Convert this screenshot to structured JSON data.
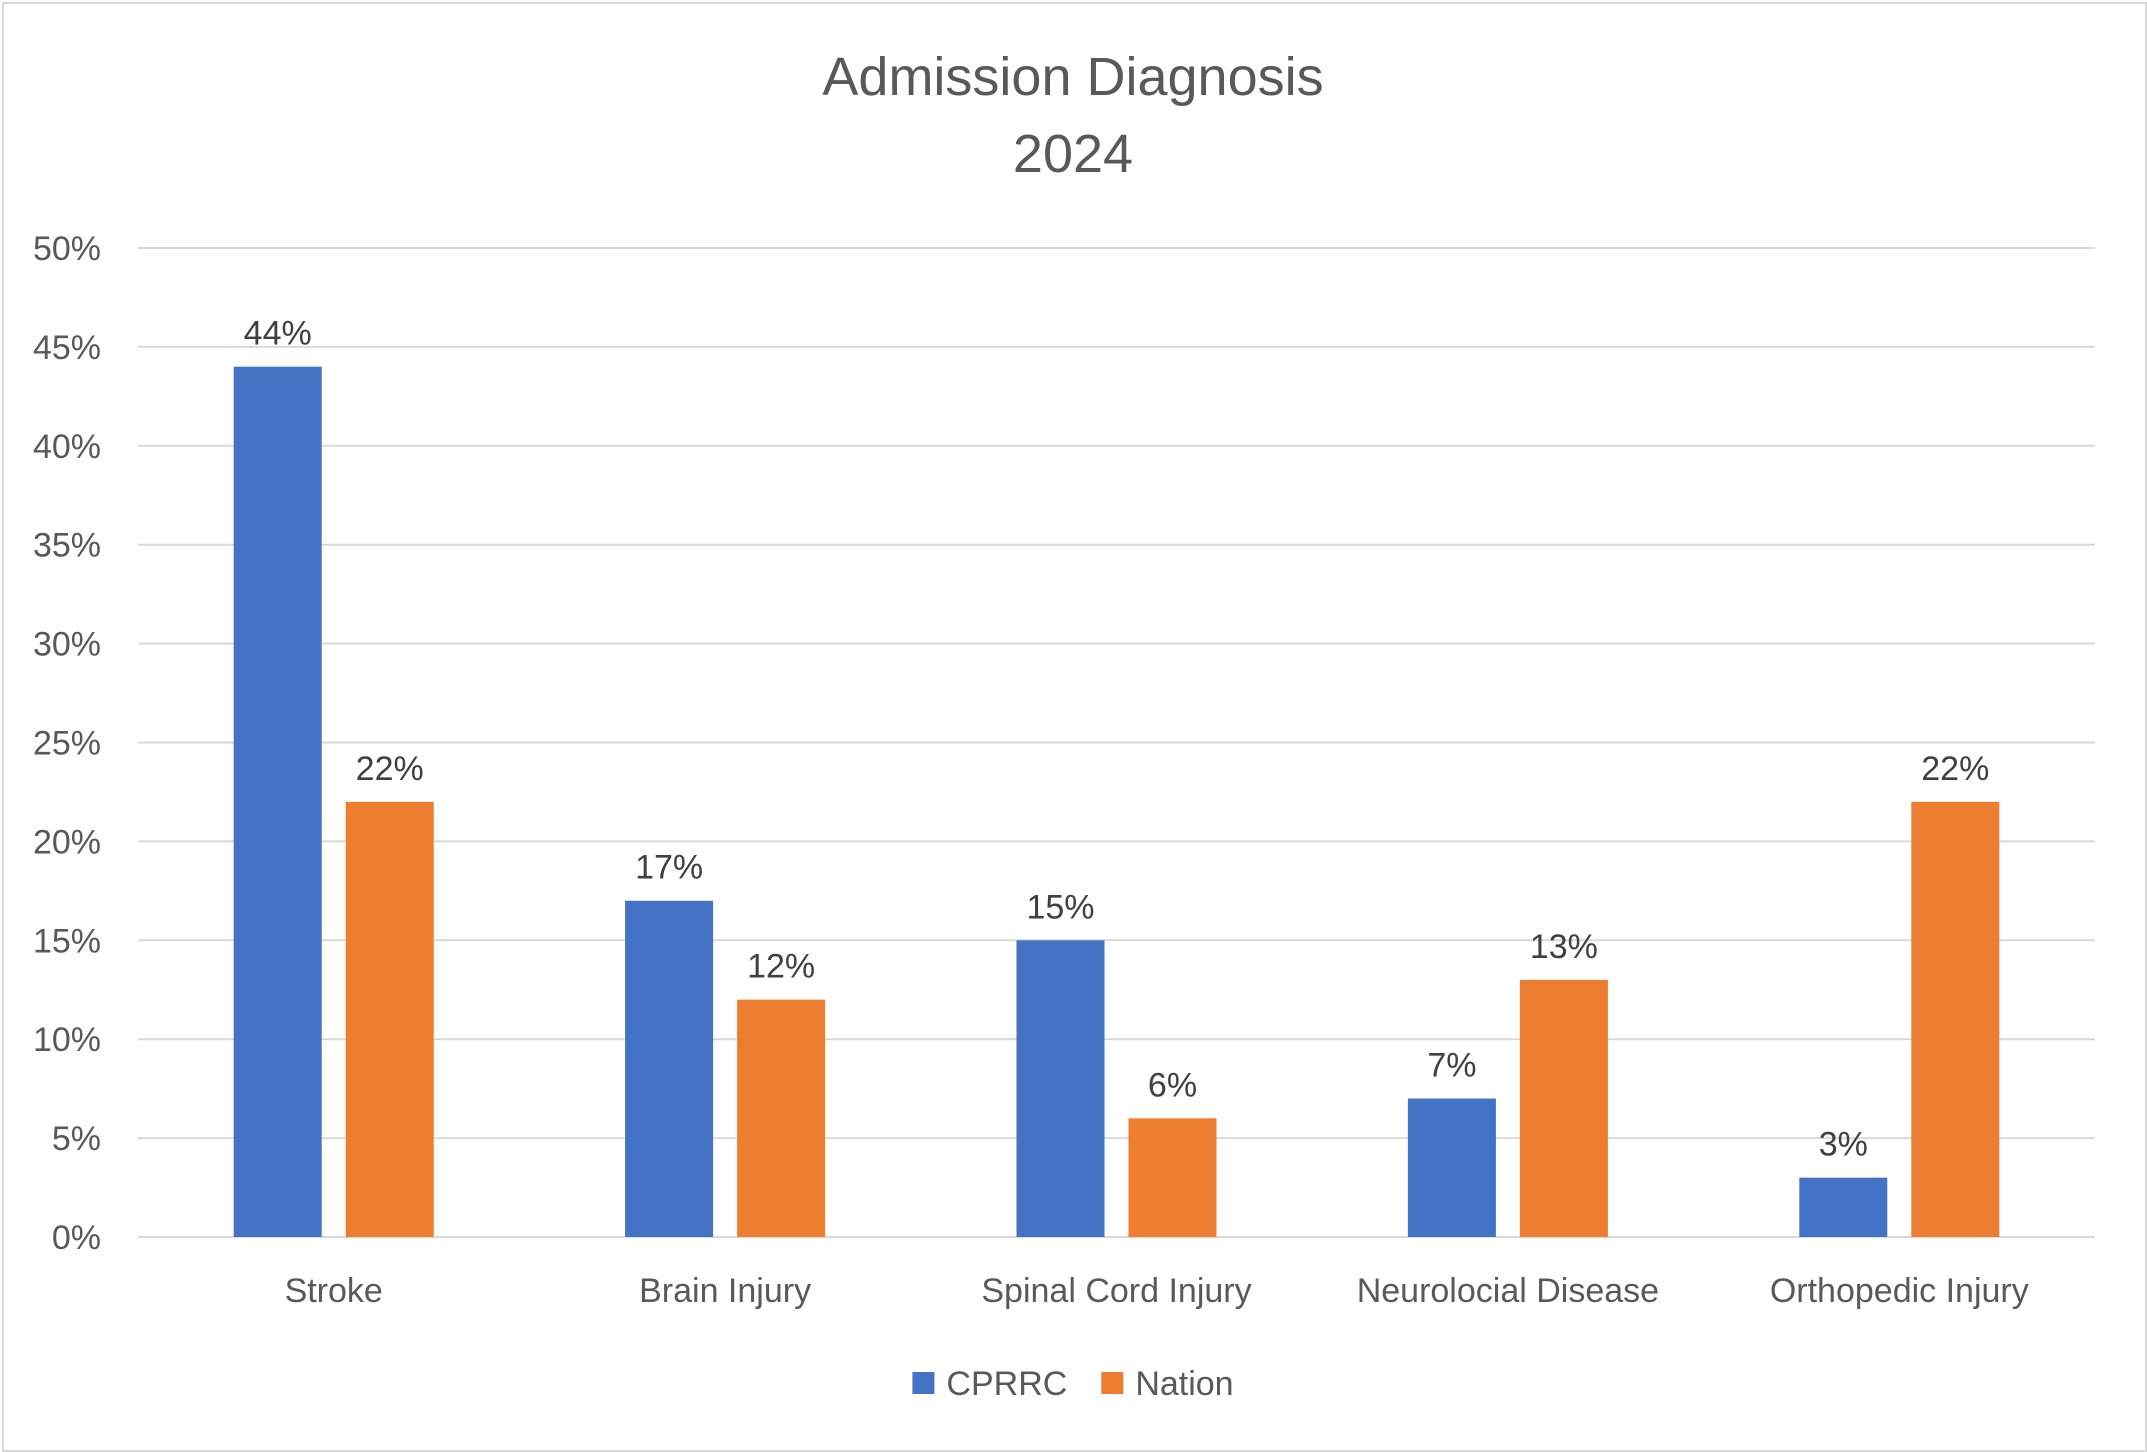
{
  "chart_data": {
    "type": "bar",
    "title": [
      "Admission Diagnosis",
      "2024"
    ],
    "categories": [
      "Stroke",
      "Brain Injury",
      "Spinal Cord Injury",
      "Neurolocial Disease",
      "Orthopedic Injury"
    ],
    "series": [
      {
        "name": "CPRRC",
        "color": "#4472c4",
        "values": [
          44,
          17,
          15,
          7,
          3
        ],
        "labels": [
          "44%",
          "17%",
          "15%",
          "7%",
          "3%"
        ]
      },
      {
        "name": "Nation",
        "color": "#ed7d31",
        "values": [
          22,
          12,
          6,
          13,
          22
        ],
        "labels": [
          "22%",
          "12%",
          "6%",
          "13%",
          "22%"
        ]
      }
    ],
    "yticks": [
      "0%",
      "5%",
      "10%",
      "15%",
      "20%",
      "25%",
      "30%",
      "35%",
      "40%",
      "45%",
      "50%"
    ],
    "ylim": [
      0,
      50
    ],
    "gridlines": true,
    "legend_position": "bottom"
  }
}
